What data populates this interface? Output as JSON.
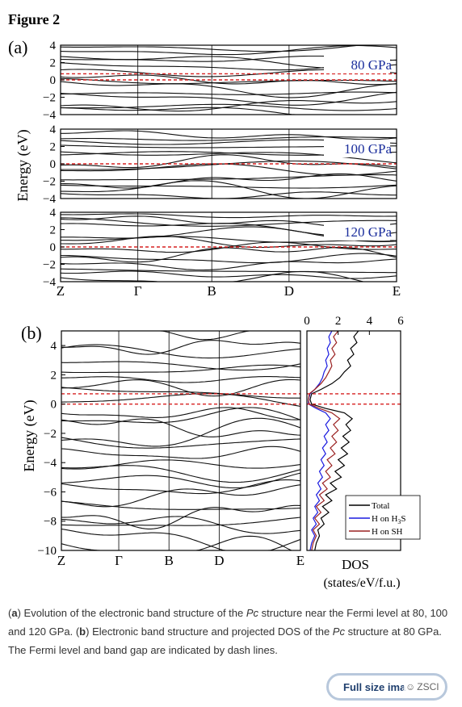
{
  "figure": {
    "title": "Figure 2",
    "panel_a_label": "(a)",
    "panel_b_label": "(b)",
    "y_axis_label": "Energy (eV)"
  },
  "caption": {
    "p1": "(",
    "b1": "a",
    "p2": ") Evolution of the electronic band structure of the ",
    "i1": "Pc",
    "p3": " structure near the Fermi level at 80, 100 and 120 GPa. (",
    "b2": "b",
    "p4": ") Electronic band structure and projected DOS of the ",
    "i2": "Pc",
    "p5": " structure at 80 GPa. The Fermi level and band gap are indicated by dash lines."
  },
  "button": {
    "label": "Full size ima"
  },
  "watermark": {
    "icon": "wechat-icon",
    "text": "ZSCI"
  },
  "colors": {
    "band": "#111111",
    "fermi": "#d62020",
    "pressure_label": "#1a2d9c",
    "h_on_h2s": "#1a1ae0",
    "h_on_sh": "#9a2020",
    "total": "#000000"
  },
  "chart_data": [
    {
      "type": "line",
      "panel": "(a)",
      "pressure_label": "80 GPa",
      "ylabel": "Energy (eV)",
      "ylim": [
        -4,
        4
      ],
      "yticks": [
        -4,
        -2,
        0,
        2,
        4
      ],
      "x_tick_labels": [
        "Z",
        "Γ",
        "B",
        "D",
        "E"
      ],
      "fermi_dash_levels": [
        0,
        0.7
      ]
    },
    {
      "type": "line",
      "panel": "(a)",
      "pressure_label": "100 GPa",
      "ylabel": "Energy (eV)",
      "ylim": [
        -4,
        4
      ],
      "yticks": [
        -4,
        -2,
        0,
        2,
        4
      ],
      "x_tick_labels": [
        "Z",
        "Γ",
        "B",
        "D",
        "E"
      ],
      "fermi_dash_levels": [
        0
      ]
    },
    {
      "type": "line",
      "panel": "(a)",
      "pressure_label": "120 GPa",
      "ylabel": "Energy (eV)",
      "ylim": [
        -4,
        4
      ],
      "yticks": [
        -4,
        -2,
        0,
        2,
        4
      ],
      "x_tick_labels": [
        "Z",
        "Γ",
        "B",
        "D",
        "E"
      ],
      "fermi_dash_levels": [
        0
      ]
    },
    {
      "type": "line",
      "panel": "(b)",
      "ylabel": "Energy (eV)",
      "ylim": [
        -10,
        5
      ],
      "yticks": [
        -10,
        -8,
        -6,
        -4,
        -2,
        0,
        2,
        4
      ],
      "x_tick_labels": [
        "Z",
        "Γ",
        "B",
        "D",
        "E"
      ],
      "fermi_dash_levels": [
        0,
        0.7
      ]
    },
    {
      "type": "line",
      "panel": "(b) DOS",
      "xlabel": "DOS",
      "xlabel_units": "(states/eV/f.u.)",
      "xlim": [
        0,
        6
      ],
      "xticks": [
        0,
        2,
        4,
        6
      ],
      "ylim": [
        -10,
        5
      ],
      "legend": [
        "Total",
        "H on H",
        "H on SH"
      ],
      "legend_sub": "3",
      "legend_tail": "S",
      "legend_position": "bottom-right",
      "series": [
        {
          "name": "Total",
          "color": "#000000",
          "points": [
            [
              0.5,
              -10
            ],
            [
              0.6,
              -9.5
            ],
            [
              0.8,
              -9
            ],
            [
              0.7,
              -8.6
            ],
            [
              1.1,
              -8.2
            ],
            [
              0.9,
              -7.8
            ],
            [
              1.4,
              -7.4
            ],
            [
              1.0,
              -7.0
            ],
            [
              1.6,
              -6.6
            ],
            [
              1.2,
              -6.2
            ],
            [
              1.9,
              -5.8
            ],
            [
              1.5,
              -5.4
            ],
            [
              2.2,
              -5.0
            ],
            [
              1.8,
              -4.6
            ],
            [
              2.4,
              -4.2
            ],
            [
              2.0,
              -3.8
            ],
            [
              2.6,
              -3.4
            ],
            [
              2.2,
              -3.0
            ],
            [
              2.7,
              -2.6
            ],
            [
              2.3,
              -2.2
            ],
            [
              2.8,
              -1.8
            ],
            [
              2.5,
              -1.4
            ],
            [
              2.9,
              -1.0
            ],
            [
              2.4,
              -0.6
            ],
            [
              1.2,
              -0.3
            ],
            [
              0.3,
              0
            ],
            [
              0.2,
              0.3
            ],
            [
              0.3,
              0.7
            ],
            [
              0.9,
              1.0
            ],
            [
              1.6,
              1.4
            ],
            [
              2.1,
              1.8
            ],
            [
              2.4,
              2.2
            ],
            [
              2.8,
              2.6
            ],
            [
              2.6,
              3.0
            ],
            [
              3.0,
              3.4
            ],
            [
              2.8,
              3.8
            ],
            [
              3.2,
              4.2
            ],
            [
              3.0,
              4.6
            ],
            [
              3.3,
              5.0
            ]
          ]
        },
        {
          "name": "H on H3S",
          "color": "#1a1ae0",
          "points": [
            [
              0.2,
              -10
            ],
            [
              0.3,
              -9.5
            ],
            [
              0.5,
              -9
            ],
            [
              0.3,
              -8.6
            ],
            [
              0.6,
              -8.2
            ],
            [
              0.4,
              -7.8
            ],
            [
              0.7,
              -7.4
            ],
            [
              0.5,
              -7.0
            ],
            [
              0.8,
              -6.6
            ],
            [
              0.6,
              -6.2
            ],
            [
              0.9,
              -5.8
            ],
            [
              0.7,
              -5.4
            ],
            [
              1.0,
              -5.0
            ],
            [
              0.8,
              -4.6
            ],
            [
              1.1,
              -4.2
            ],
            [
              0.9,
              -3.8
            ],
            [
              1.2,
              -3.4
            ],
            [
              1.0,
              -3.0
            ],
            [
              1.3,
              -2.6
            ],
            [
              1.1,
              -2.2
            ],
            [
              1.4,
              -1.8
            ],
            [
              1.2,
              -1.4
            ],
            [
              1.5,
              -1.0
            ],
            [
              1.2,
              -0.6
            ],
            [
              0.6,
              -0.3
            ],
            [
              0.1,
              0
            ],
            [
              0.1,
              0.3
            ],
            [
              0.2,
              0.7
            ],
            [
              0.5,
              1.0
            ],
            [
              0.8,
              1.4
            ],
            [
              1.0,
              1.8
            ],
            [
              1.1,
              2.2
            ],
            [
              1.3,
              2.6
            ],
            [
              1.2,
              3.0
            ],
            [
              1.4,
              3.4
            ],
            [
              1.3,
              3.8
            ],
            [
              1.5,
              4.2
            ],
            [
              1.4,
              4.6
            ],
            [
              1.6,
              5.0
            ]
          ]
        },
        {
          "name": "H on SH",
          "color": "#9a2020",
          "points": [
            [
              0.3,
              -10
            ],
            [
              0.4,
              -9.5
            ],
            [
              0.6,
              -9
            ],
            [
              0.4,
              -8.6
            ],
            [
              0.8,
              -8.2
            ],
            [
              0.5,
              -7.8
            ],
            [
              0.9,
              -7.4
            ],
            [
              0.6,
              -7.0
            ],
            [
              1.1,
              -6.6
            ],
            [
              0.8,
              -6.2
            ],
            [
              1.3,
              -5.8
            ],
            [
              1.0,
              -5.4
            ],
            [
              1.5,
              -5.0
            ],
            [
              1.2,
              -4.6
            ],
            [
              1.6,
              -4.2
            ],
            [
              1.3,
              -3.8
            ],
            [
              1.8,
              -3.4
            ],
            [
              1.5,
              -3.0
            ],
            [
              1.9,
              -2.6
            ],
            [
              1.6,
              -2.2
            ],
            [
              2.0,
              -1.8
            ],
            [
              1.7,
              -1.4
            ],
            [
              2.1,
              -1.0
            ],
            [
              1.6,
              -0.6
            ],
            [
              0.8,
              -0.3
            ],
            [
              0.15,
              0
            ],
            [
              0.1,
              0.3
            ],
            [
              0.15,
              0.7
            ],
            [
              0.5,
              1.0
            ],
            [
              0.9,
              1.4
            ],
            [
              1.2,
              1.8
            ],
            [
              1.4,
              2.2
            ],
            [
              1.6,
              2.6
            ],
            [
              1.5,
              3.0
            ],
            [
              1.8,
              3.4
            ],
            [
              1.6,
              3.8
            ],
            [
              1.9,
              4.2
            ],
            [
              1.7,
              4.6
            ],
            [
              2.0,
              5.0
            ]
          ]
        }
      ]
    }
  ]
}
